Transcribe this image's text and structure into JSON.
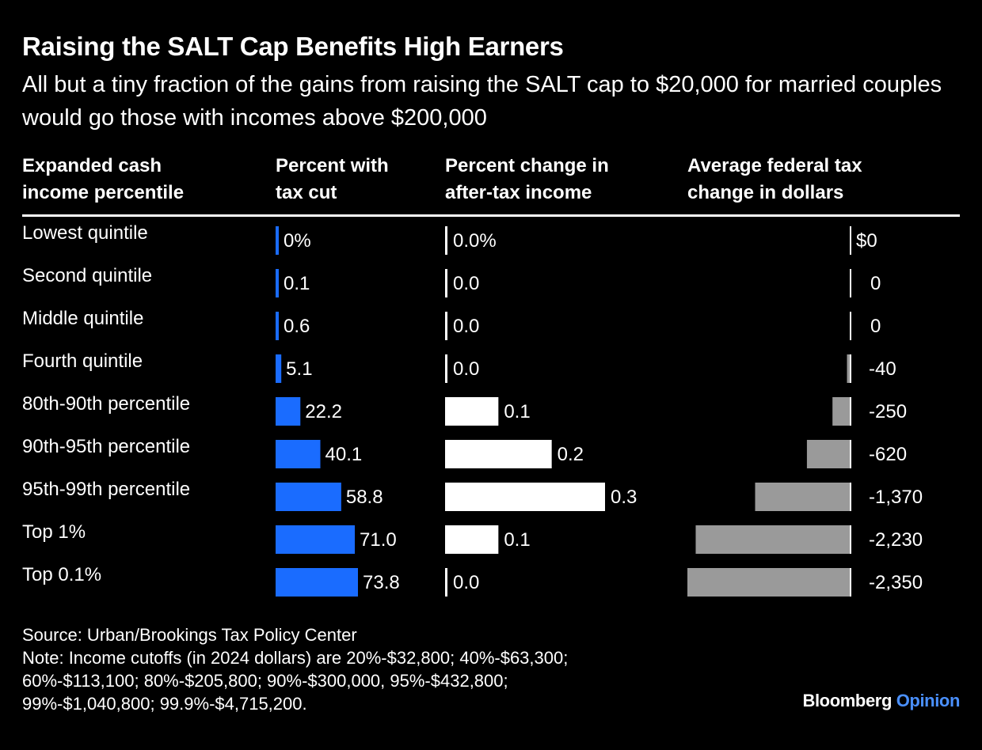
{
  "title": "Raising the SALT Cap Benefits High Earners",
  "subtitle": "All but a tiny fraction of the gains from raising the SALT cap to $20,000 for married couples would go those with incomes above $200,000",
  "columns": {
    "c1": [
      "Expanded cash",
      "income percentile"
    ],
    "c2": [
      "Percent with",
      "tax cut"
    ],
    "c3": [
      "Percent change in",
      "after-tax income"
    ],
    "c4": [
      "Average federal tax",
      "change in dollars"
    ]
  },
  "chart_data": {
    "type": "table",
    "rows": [
      "Lowest quintile",
      "Second quintile",
      "Middle quintile",
      "Fourth quintile",
      "80th-90th percentile",
      "90th-95th percentile",
      "95th-99th percentile",
      "Top 1%",
      "Top 0.1%"
    ],
    "series": [
      {
        "name": "Percent with tax cut",
        "values": [
          0,
          0.1,
          0.6,
          5.1,
          22.2,
          40.1,
          58.8,
          71.0,
          73.8
        ],
        "labels": [
          "0%",
          "0.1",
          "0.6",
          "5.1",
          "22.2",
          "40.1",
          "58.8",
          "71.0",
          "73.8"
        ],
        "color": "#1a6cff"
      },
      {
        "name": "Percent change in after-tax income",
        "values": [
          0.0,
          0.0,
          0.0,
          0.0,
          0.1,
          0.2,
          0.3,
          0.1,
          0.0
        ],
        "labels": [
          "0.0%",
          "0.0",
          "0.0",
          "0.0",
          "0.1",
          "0.2",
          "0.3",
          "0.1",
          "0.0"
        ],
        "color": "#ffffff"
      },
      {
        "name": "Average federal tax change in dollars",
        "values": [
          0,
          0,
          0,
          -40,
          -250,
          -620,
          -1370,
          -2230,
          -2350
        ],
        "labels": [
          "$0",
          "0",
          "0",
          "-40",
          "-250",
          "-620",
          "-1,370",
          "-2,230",
          "-2,350"
        ],
        "color": "#9a9a9a"
      }
    ]
  },
  "source": "Source: Urban/Brookings Tax Policy Center",
  "note": [
    "Note: Income cutoffs (in 2024 dollars) are 20%-$32,800; 40%-$63,300;",
    "60%-$113,100; 80%-$205,800; 90%-$300,000, 95%-$432,800;",
    "99%-$1,040,800; 99.9%-$4,715,200."
  ],
  "brand": {
    "name": "Bloomberg",
    "section": "Opinion"
  }
}
